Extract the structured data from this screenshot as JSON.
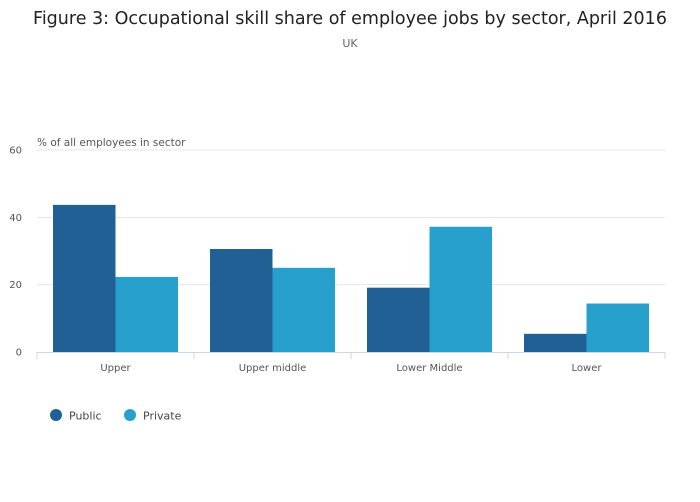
{
  "chart_data": {
    "type": "bar",
    "title": "Figure 3: Occupational skill share of employee jobs by sector, April 2016",
    "subtitle": "UK",
    "xlabel": "",
    "ylabel": "% of all employees in sector",
    "categories": [
      "Upper",
      "Upper middle",
      "Lower Middle",
      "Lower"
    ],
    "series": [
      {
        "name": "Public",
        "values": [
          43.7,
          30.6,
          19.1,
          5.4
        ],
        "color": "#206095"
      },
      {
        "name": "Private",
        "values": [
          22.3,
          25.0,
          37.2,
          14.4
        ],
        "color": "#27A0CC"
      }
    ],
    "ylim": [
      0,
      60
    ],
    "yticks": [
      0,
      20,
      40,
      60
    ],
    "grid": true,
    "legend_position": "bottom-left"
  }
}
